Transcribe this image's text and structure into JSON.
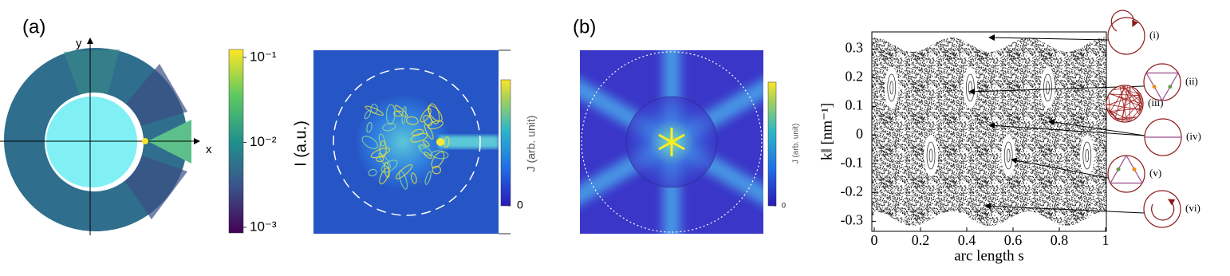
{
  "panel_a": {
    "label": "(a)",
    "ring_axes": {
      "x": "x",
      "y": "y"
    },
    "intensity_colorbar": {
      "label": "I (a.u.)",
      "scale": "log",
      "lim": [
        0.00086,
        0.124
      ],
      "ticks": [
        {
          "value": 0.1,
          "label": "10⁻¹"
        },
        {
          "value": 0.01,
          "label": "10⁻²"
        },
        {
          "value": 0.001,
          "label": "10⁻³"
        }
      ]
    },
    "current_colorbar": {
      "label": "J (arb. unit)",
      "ticks": [
        0
      ]
    }
  },
  "panel_b": {
    "label": "(b)",
    "current_colorbar": {
      "label": "J (arb. unit)",
      "ticks": [
        0
      ]
    },
    "poincare": {
      "x_label": "arc length s",
      "y_label": "k‖ [nm⁻¹]",
      "xlim": [
        0,
        1
      ],
      "ylim": [
        -0.335,
        0.36
      ],
      "xticks": [
        0,
        0.2,
        0.4,
        0.6,
        0.8,
        1
      ],
      "yticks": [
        0.3,
        0.2,
        0.1,
        0,
        -0.1,
        -0.2,
        -0.3
      ],
      "orbit_labels": [
        "(i)",
        "(ii)",
        "(iii)",
        "(iv)",
        "(v)",
        "(vi)"
      ]
    }
  }
}
